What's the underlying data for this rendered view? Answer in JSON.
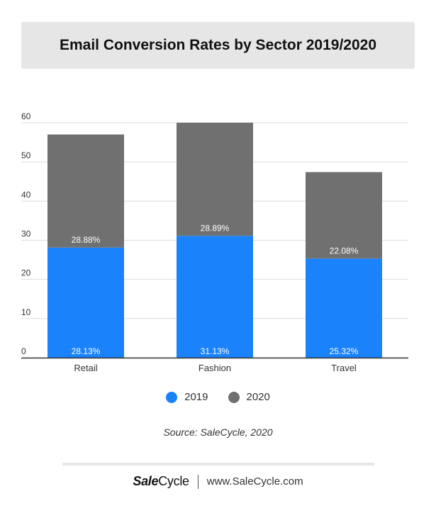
{
  "title": "Email Conversion Rates by Sector 2019/2020",
  "source": "Source: SaleCycle, 2020",
  "footer": {
    "brand_bold": "Sale",
    "brand_regular": "Cycle",
    "website": "www.SaleCycle.com"
  },
  "colors": {
    "series_2019": "#1a82fb",
    "series_2020": "#707070"
  },
  "chart_data": {
    "type": "bar",
    "stacked": true,
    "categories": [
      "Retail",
      "Fashion",
      "Travel"
    ],
    "series": [
      {
        "name": "2019",
        "values": [
          28.13,
          31.13,
          25.32
        ],
        "labels": [
          "28.13%",
          "31.13%",
          "25.32%"
        ]
      },
      {
        "name": "2020",
        "values": [
          28.88,
          28.89,
          22.08
        ],
        "labels": [
          "28.88%",
          "28.89%",
          "22.08%"
        ]
      }
    ],
    "ylim": [
      0,
      60
    ],
    "yticks": [
      0,
      10,
      20,
      30,
      40,
      50,
      60
    ],
    "grid": true,
    "legend": "bottom"
  }
}
